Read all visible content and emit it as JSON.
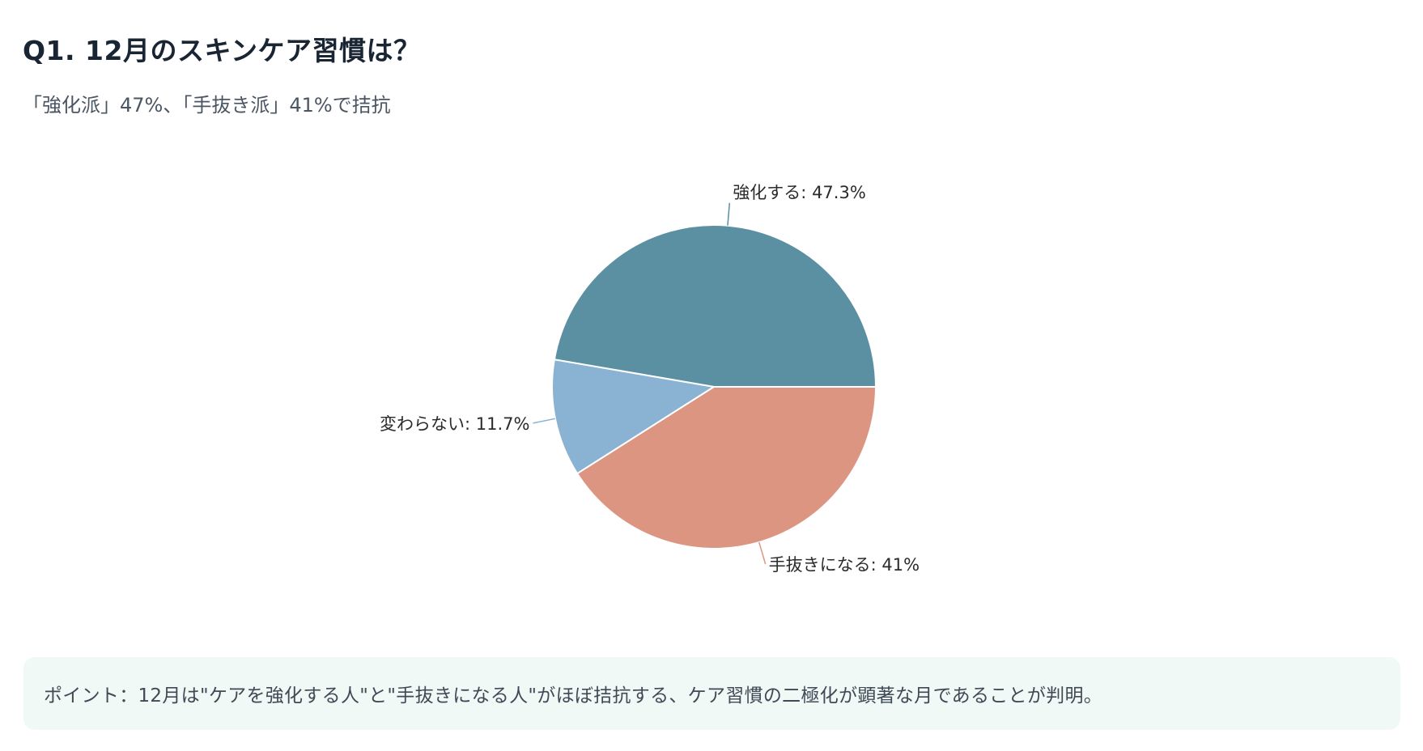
{
  "title": "Q1. 12月のスキンケア習慣は？",
  "subtitle": "「強化派」47%、「手抜き派」41%で拮抗",
  "chart_data": {
    "type": "pie",
    "series": [
      {
        "name": "強化する",
        "value": 47.3,
        "label": "強化する: 47.3%",
        "color": "#5b8fa2"
      },
      {
        "name": "変わらない",
        "value": 11.7,
        "label": "変わらない: 11.7%",
        "color": "#8ab2d3"
      },
      {
        "name": "手抜きになる",
        "value": 41,
        "label": "手抜きになる: 41%",
        "color": "#dc9581"
      }
    ]
  },
  "point": {
    "text": "ポイント：12月は\"ケアを強化する人\"と\"手抜きになる人\"がほぼ拮抗する、ケア習慣の二極化が顕著な月であることが判明。"
  }
}
